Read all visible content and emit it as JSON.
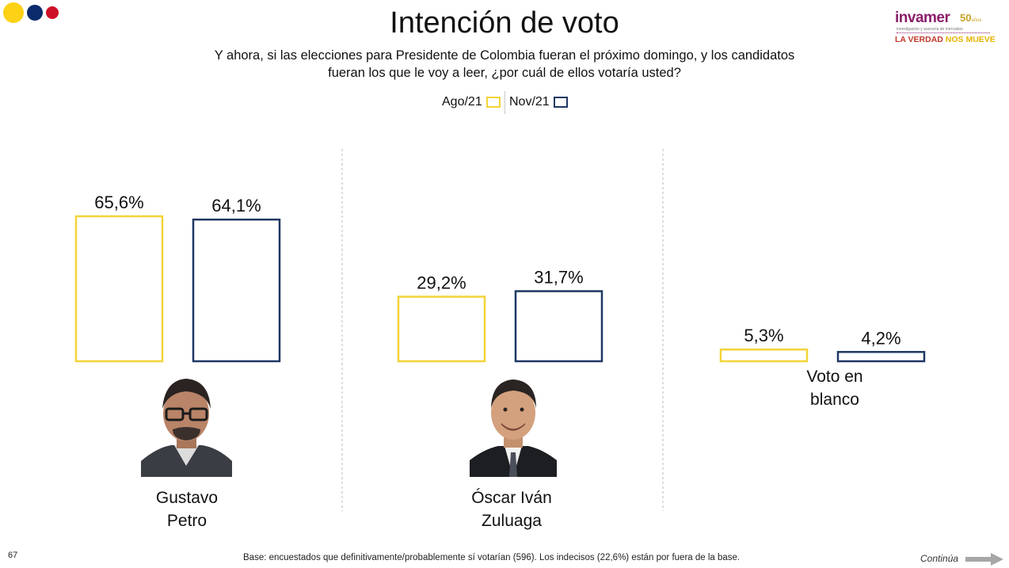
{
  "header": {
    "title": "Intención de voto",
    "subtitle_line1": "Y ahora, si las elecciones para Presidente de Colombia fueran el próximo domingo, y los candidatos",
    "subtitle_line2": "fueran los que le voy a leer, ¿por cuál de ellos votaría usted?"
  },
  "logo": {
    "brand": "invamer",
    "years": "50",
    "years_suffix": "años",
    "tagline_sub": "investigación y asesoría de mercados",
    "tagline_part1": "LA VERDAD",
    "tagline_part2": "NOS MUEVE"
  },
  "legend": [
    {
      "label": "Ago/21",
      "color": "#F2D437"
    },
    {
      "label": "Nov/21",
      "color": "#1F3864"
    }
  ],
  "chart_data": {
    "type": "bar",
    "title": "Intención de voto",
    "categories": [
      "Gustavo Petro",
      "Óscar Iván Zuluaga",
      "Voto en blanco"
    ],
    "series": [
      {
        "name": "Ago/21",
        "values": [
          65.6,
          29.2,
          5.3
        ],
        "labels": [
          "65,6%",
          "29,2%",
          "5,3%"
        ],
        "color": "#F2D437"
      },
      {
        "name": "Nov/21",
        "values": [
          64.1,
          31.7,
          4.2
        ],
        "labels": [
          "64,1%",
          "31,7%",
          "4,2%"
        ],
        "color": "#1F3864"
      }
    ],
    "ylim": [
      0,
      100
    ],
    "unit": "%"
  },
  "candidates": {
    "petro": {
      "line1": "Gustavo",
      "line2": "Petro"
    },
    "zuluaga": {
      "line1": "Óscar Iván",
      "line2": "Zuluaga"
    },
    "blanco": {
      "line1": "Voto en",
      "line2": "blanco"
    }
  },
  "footer": {
    "page_number": "67",
    "note": "Base: encuestados que definitivamente/probablemente sí votarían (596). Los indecisos (22,6%) están por fuera de la base.",
    "continue_label": "Continúa"
  },
  "colors": {
    "yellow": "#F2D437",
    "navy": "#1F3864",
    "brand": "#8B1E6B"
  }
}
